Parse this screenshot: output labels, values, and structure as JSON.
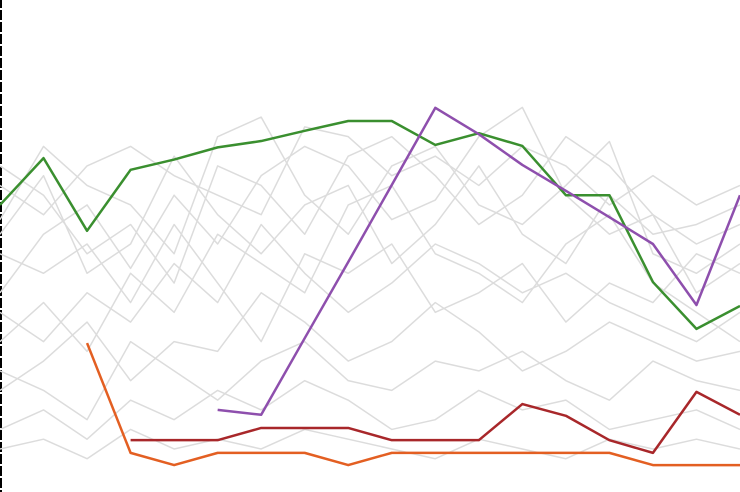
{
  "chart_data": {
    "type": "line",
    "categories": [
      null,
      null,
      null,
      null,
      null,
      null,
      null,
      null,
      null,
      null,
      null,
      null,
      null,
      null,
      null,
      null,
      null,
      null
    ],
    "ylim": [
      0,
      100
    ],
    "series": [
      {
        "color": "#dcdcdc",
        "values": [
          55,
          70,
          62,
          58,
          48,
          72,
          76,
          60,
          52,
          66,
          70,
          58,
          54,
          62,
          71,
          48,
          44,
          50
        ]
      },
      {
        "color": "#dcdcdc",
        "values": [
          40,
          52,
          58,
          45,
          60,
          50,
          64,
          70,
          66,
          55,
          59,
          72,
          78,
          60,
          52,
          56,
          40,
          46
        ]
      },
      {
        "color": "#dcdcdc",
        "values": [
          30,
          38,
          28,
          44,
          36,
          52,
          46,
          40,
          58,
          62,
          48,
          44,
          38,
          50,
          56,
          42,
          36,
          30
        ]
      },
      {
        "color": "#dcdcdc",
        "values": [
          20,
          26,
          34,
          22,
          30,
          28,
          40,
          34,
          26,
          30,
          38,
          32,
          24,
          28,
          34,
          30,
          26,
          28
        ]
      },
      {
        "color": "#dcdcdc",
        "values": [
          62,
          56,
          66,
          70,
          64,
          60,
          56,
          74,
          72,
          64,
          68,
          62,
          70,
          66,
          58,
          64,
          58,
          62
        ]
      },
      {
        "color": "#dcdcdc",
        "values": [
          12,
          16,
          10,
          18,
          14,
          20,
          16,
          22,
          18,
          12,
          14,
          20,
          16,
          18,
          12,
          14,
          16,
          12
        ]
      },
      {
        "color": "#dcdcdc",
        "values": [
          48,
          44,
          50,
          38,
          54,
          42,
          30,
          48,
          44,
          50,
          36,
          40,
          46,
          34,
          42,
          38,
          48,
          44
        ]
      },
      {
        "color": "#dcdcdc",
        "values": [
          66,
          60,
          48,
          54,
          42,
          66,
          62,
          52,
          68,
          72,
          64,
          54,
          60,
          72,
          66,
          56,
          50,
          54
        ]
      },
      {
        "color": "#dcdcdc",
        "values": [
          24,
          20,
          14,
          30,
          24,
          18,
          26,
          30,
          22,
          20,
          26,
          24,
          28,
          22,
          18,
          26,
          22,
          20
        ]
      },
      {
        "color": "#dcdcdc",
        "values": [
          52,
          64,
          44,
          50,
          68,
          56,
          48,
          58,
          62,
          46,
          54,
          66,
          52,
          46,
          60,
          52,
          54,
          58
        ]
      },
      {
        "color": "#dcdcdc",
        "values": [
          8,
          10,
          6,
          12,
          8,
          10,
          8,
          12,
          10,
          8,
          6,
          10,
          8,
          6,
          10,
          8,
          10,
          8
        ]
      },
      {
        "color": "#dcdcdc",
        "values": [
          36,
          30,
          40,
          34,
          46,
          38,
          54,
          44,
          36,
          42,
          50,
          46,
          40,
          44,
          38,
          34,
          30,
          36
        ]
      },
      {
        "color": "#3a8f2f",
        "values": [
          58.0,
          67.6,
          52.7,
          65.2,
          67.3,
          69.8,
          71.1,
          73.2,
          75.2,
          75.2,
          70.3,
          72.7,
          70.1,
          60.0,
          60.0,
          42.2,
          32.6,
          37.3
        ]
      },
      {
        "color": "#8e4fad",
        "values": [
          null,
          null,
          null,
          null,
          null,
          16.0,
          15.0,
          30.7,
          46.3,
          62.1,
          77.9,
          72.5,
          66.2,
          60.9,
          55.5,
          50.0,
          37.5,
          60.0
        ]
      },
      {
        "color": "#e35f22",
        "values": [
          null,
          null,
          29.7,
          7.2,
          4.7,
          7.2,
          7.2,
          7.2,
          4.7,
          7.2,
          7.2,
          7.2,
          7.2,
          7.2,
          7.2,
          4.7,
          4.7,
          4.7
        ]
      },
      {
        "color": "#a8272a",
        "values": [
          null,
          null,
          null,
          9.8,
          9.8,
          9.8,
          12.3,
          12.3,
          12.3,
          9.8,
          9.8,
          9.8,
          17.2,
          14.8,
          9.8,
          7.2,
          19.7,
          15.0
        ]
      }
    ]
  }
}
